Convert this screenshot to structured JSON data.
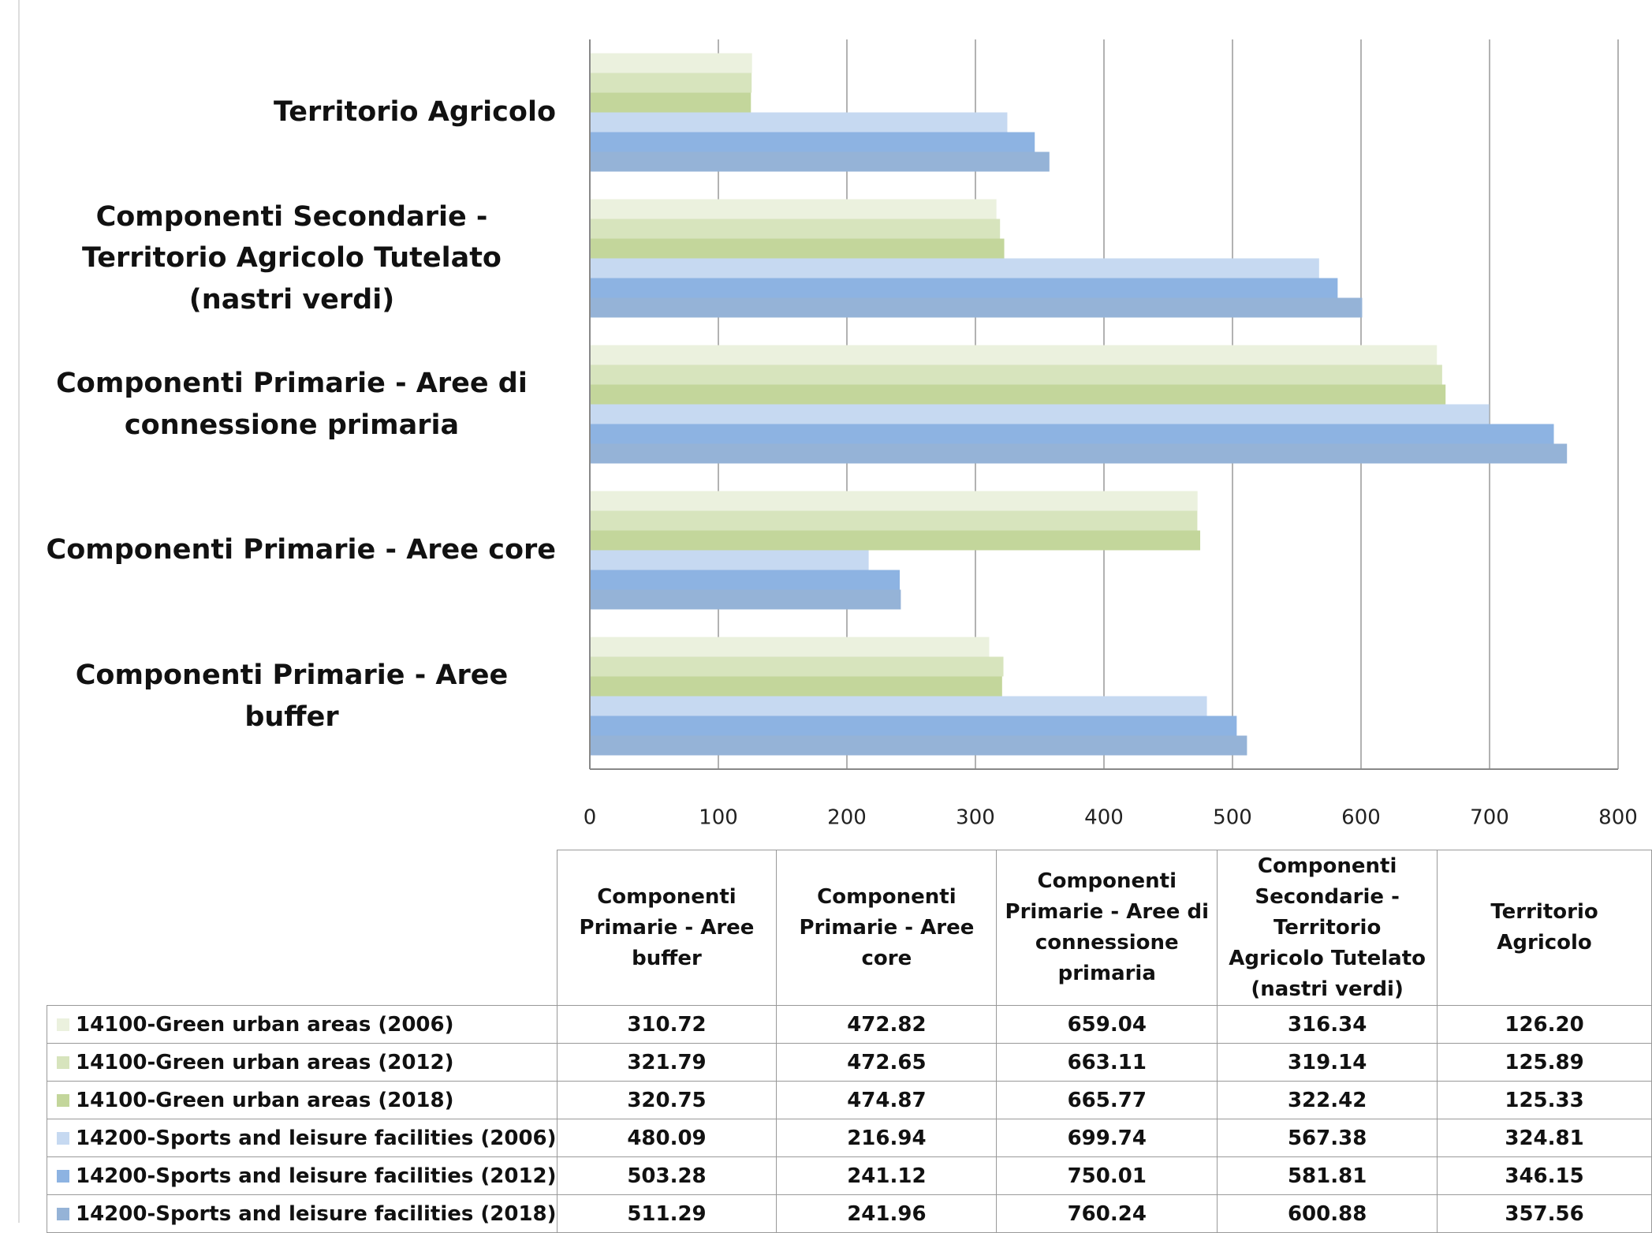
{
  "chart_data": {
    "type": "bar",
    "orientation": "horizontal",
    "categories": [
      "Componenti Primarie - Aree buffer",
      "Componenti Primarie - Aree core",
      "Componenti Primarie - Aree di connessione primaria",
      "Componenti Secondarie - Territorio Agricolo Tutelato (nastri verdi)",
      "Territorio Agricolo"
    ],
    "series": [
      {
        "name": "14100-Green urban areas (2006)",
        "color": "#ebf1de",
        "values": [
          310.72,
          472.82,
          659.04,
          316.34,
          126.2
        ],
        "value_labels": [
          "310.72",
          "472.82",
          "659.04",
          "316.34",
          "126.20"
        ]
      },
      {
        "name": "14100-Green urban areas (2012)",
        "color": "#d7e4bd",
        "values": [
          321.79,
          472.65,
          663.11,
          319.14,
          125.89
        ],
        "value_labels": [
          "321.79",
          "472.65",
          "663.11",
          "319.14",
          "125.89"
        ]
      },
      {
        "name": "14100-Green urban areas (2018)",
        "color": "#c3d69b",
        "values": [
          320.75,
          474.87,
          665.77,
          322.42,
          125.33
        ],
        "value_labels": [
          "320.75",
          "474.87",
          "665.77",
          "322.42",
          "125.33"
        ]
      },
      {
        "name": "14200-Sports and leisure facilities (2006)",
        "color": "#c6d9f1",
        "values": [
          480.09,
          216.94,
          699.74,
          567.38,
          324.81
        ],
        "value_labels": [
          "480.09",
          "216.94",
          "699.74",
          "567.38",
          "324.81"
        ]
      },
      {
        "name": "14200-Sports and leisure facilities (2012)",
        "color": "#8db3e2",
        "values": [
          503.28,
          241.12,
          750.01,
          581.81,
          346.15
        ],
        "value_labels": [
          "503.28",
          "241.12",
          "750.01",
          "581.81",
          "346.15"
        ]
      },
      {
        "name": "14200-Sports and leisure facilities (2018)",
        "color": "#95b3d7",
        "values": [
          511.29,
          241.96,
          760.24,
          600.88,
          357.56
        ],
        "value_labels": [
          "511.29",
          "241.96",
          "760.24",
          "600.88",
          "357.56"
        ]
      }
    ],
    "xlim": [
      0,
      800
    ],
    "xticks": [
      0,
      100,
      200,
      300,
      400,
      500,
      600,
      700,
      800
    ],
    "grid": true,
    "data_table": true
  }
}
